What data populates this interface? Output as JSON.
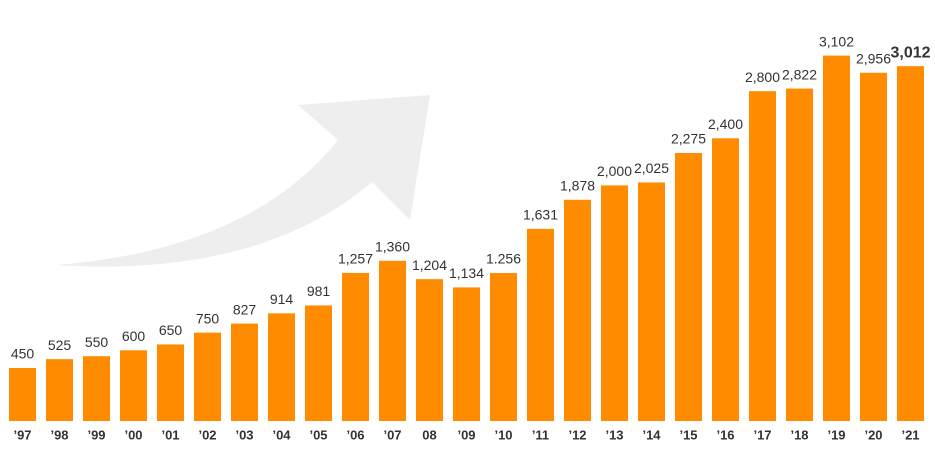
{
  "chart_data": {
    "type": "bar",
    "categories": [
      "’97",
      "’98",
      "’99",
      "’00",
      "’01",
      "’02",
      "’03",
      "’04",
      "’05",
      "’06",
      "’07",
      "08",
      "’09",
      "’10",
      "’11",
      "’12",
      "’13",
      "’14",
      "’15",
      "’16",
      "’17",
      "’18",
      "’19",
      "’20",
      "’21"
    ],
    "values": [
      450,
      525,
      550,
      600,
      650,
      750,
      827,
      914,
      981,
      1257,
      1360,
      1204,
      1134,
      1256,
      1631,
      1878,
      2000,
      2025,
      2275,
      2400,
      2800,
      2822,
      3102,
      2956,
      3012
    ],
    "value_labels": [
      "450",
      "525",
      "550",
      "600",
      "650",
      "750",
      "827",
      "914",
      "981",
      "1,257",
      "1,360",
      "1,204",
      "1,134",
      "1.256",
      "1,631",
      "1,878",
      "2,000",
      "2,025",
      "2,275",
      "2,400",
      "2,800",
      "2,822",
      "3,102",
      "2,956",
      "3,012"
    ],
    "color": "#ff8c00"
  }
}
